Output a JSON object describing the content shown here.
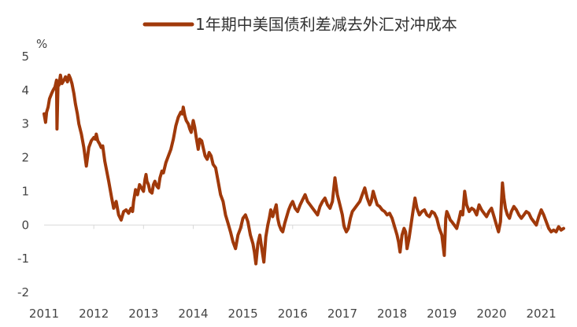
{
  "chart_data": {
    "type": "line",
    "title": "",
    "xlabel": "",
    "ylabel": "%",
    "xlim": [
      2011,
      2021.45
    ],
    "ylim": [
      -2,
      5
    ],
    "y_ticks": [
      "5",
      "4",
      "3",
      "2",
      "1",
      "0",
      "-1",
      "-2"
    ],
    "x_ticks": [
      "2011",
      "2012",
      "2013",
      "2014",
      "2015",
      "2016",
      "2017",
      "2018",
      "2019",
      "2020",
      "2021"
    ],
    "grid": false,
    "legend": "top-center",
    "series": [
      {
        "name": "1年期中美国债利差减去外汇对冲成本",
        "color": "#A0390A",
        "x": [
          2011.0,
          2011.03,
          2011.05,
          2011.08,
          2011.11,
          2011.15,
          2011.18,
          2011.22,
          2011.25,
          2011.26,
          2011.28,
          2011.3,
          2011.33,
          2011.36,
          2011.4,
          2011.43,
          2011.47,
          2011.5,
          2011.53,
          2011.56,
          2011.6,
          2011.63,
          2011.67,
          2011.7,
          2011.75,
          2011.8,
          2011.85,
          2011.9,
          2011.95,
          2012.0,
          2012.03,
          2012.05,
          2012.08,
          2012.12,
          2012.15,
          2012.18,
          2012.22,
          2012.26,
          2012.3,
          2012.33,
          2012.36,
          2012.4,
          2012.45,
          2012.5,
          2012.55,
          2012.6,
          2012.65,
          2012.7,
          2012.75,
          2012.78,
          2012.8,
          2012.84,
          2012.88,
          2012.92,
          2012.96,
          2013.0,
          2013.03,
          2013.05,
          2013.07,
          2013.1,
          2013.13,
          2013.17,
          2013.2,
          2013.23,
          2013.27,
          2013.3,
          2013.33,
          2013.37,
          2013.4,
          2013.45,
          2013.5,
          2013.55,
          2013.6,
          2013.65,
          2013.7,
          2013.75,
          2013.78,
          2013.8,
          2013.83,
          2013.86,
          2013.9,
          2013.93,
          2013.96,
          2014.0,
          2014.03,
          2014.06,
          2014.1,
          2014.13,
          2014.17,
          2014.2,
          2014.24,
          2014.28,
          2014.32,
          2014.36,
          2014.4,
          2014.45,
          2014.5,
          2014.55,
          2014.6,
          2014.65,
          2014.7,
          2014.75,
          2014.8,
          2014.85,
          2014.9,
          2014.95,
          2015.0,
          2015.05,
          2015.1,
          2015.15,
          2015.2,
          2015.23,
          2015.26,
          2015.3,
          2015.34,
          2015.38,
          2015.42,
          2015.46,
          2015.5,
          2015.53,
          2015.56,
          2015.6,
          2015.63,
          2015.67,
          2015.7,
          2015.73,
          2015.77,
          2015.8,
          2015.84,
          2015.88,
          2015.92,
          2015.96,
          2016.0,
          2016.05,
          2016.1,
          2016.15,
          2016.2,
          2016.25,
          2016.3,
          2016.35,
          2016.4,
          2016.45,
          2016.5,
          2016.55,
          2016.6,
          2016.65,
          2016.7,
          2016.75,
          2016.8,
          2016.85,
          2016.9,
          2016.95,
          2017.0,
          2017.03,
          2017.05,
          2017.08,
          2017.12,
          2017.16,
          2017.2,
          2017.25,
          2017.3,
          2017.35,
          2017.4,
          2017.45,
          2017.5,
          2017.55,
          2017.58,
          2017.62,
          2017.66,
          2017.7,
          2017.75,
          2017.8,
          2017.85,
          2017.9,
          2017.95,
          2018.0,
          2018.05,
          2018.1,
          2018.13,
          2018.16,
          2018.2,
          2018.24,
          2018.27,
          2018.3,
          2018.34,
          2018.38,
          2018.42,
          2018.46,
          2018.5,
          2018.55,
          2018.6,
          2018.65,
          2018.7,
          2018.75,
          2018.8,
          2018.85,
          2018.9,
          2018.95,
          2019.0,
          2019.05,
          2019.08,
          2019.1,
          2019.13,
          2019.17,
          2019.2,
          2019.25,
          2019.3,
          2019.35,
          2019.38,
          2019.42,
          2019.46,
          2019.5,
          2019.55,
          2019.6,
          2019.65,
          2019.7,
          2019.75,
          2019.8,
          2019.85,
          2019.9,
          2019.95,
          2020.0,
          2020.03,
          2020.06,
          2020.1,
          2020.14,
          2020.18,
          2020.2,
          2020.22,
          2020.25,
          2020.28,
          2020.32,
          2020.36,
          2020.4,
          2020.45,
          2020.5,
          2020.55,
          2020.6,
          2020.65,
          2020.7,
          2020.75,
          2020.8,
          2020.85,
          2020.9,
          2020.95,
          2021.0,
          2021.05,
          2021.1,
          2021.15,
          2021.2,
          2021.25,
          2021.3,
          2021.35,
          2021.4,
          2021.45
        ],
        "values": [
          3.3,
          3.05,
          3.35,
          3.5,
          3.75,
          3.9,
          4.0,
          4.1,
          4.3,
          2.85,
          4.2,
          4.15,
          4.45,
          4.2,
          4.3,
          4.4,
          4.25,
          4.45,
          4.35,
          4.2,
          3.9,
          3.6,
          3.3,
          3.0,
          2.7,
          2.3,
          1.75,
          2.3,
          2.5,
          2.6,
          2.55,
          2.7,
          2.5,
          2.4,
          2.3,
          2.35,
          1.9,
          1.6,
          1.3,
          1.05,
          0.8,
          0.5,
          0.7,
          0.3,
          0.15,
          0.4,
          0.45,
          0.35,
          0.5,
          0.4,
          0.7,
          1.05,
          0.9,
          1.2,
          1.1,
          1.0,
          1.35,
          1.5,
          1.3,
          1.2,
          1.0,
          0.95,
          1.2,
          1.3,
          1.15,
          1.1,
          1.4,
          1.6,
          1.55,
          1.85,
          2.05,
          2.25,
          2.55,
          2.95,
          3.2,
          3.35,
          3.3,
          3.5,
          3.25,
          3.1,
          3.0,
          2.85,
          2.75,
          3.1,
          2.9,
          2.6,
          2.25,
          2.55,
          2.5,
          2.3,
          2.05,
          1.95,
          2.15,
          2.05,
          1.8,
          1.7,
          1.3,
          0.9,
          0.7,
          0.3,
          0.05,
          -0.2,
          -0.5,
          -0.7,
          -0.3,
          -0.1,
          0.2,
          0.3,
          0.1,
          -0.3,
          -0.55,
          -0.8,
          -1.15,
          -0.55,
          -0.3,
          -0.7,
          -1.1,
          -0.35,
          0.0,
          0.2,
          0.45,
          0.25,
          0.4,
          0.6,
          0.2,
          0.0,
          -0.15,
          -0.2,
          0.05,
          0.25,
          0.45,
          0.6,
          0.7,
          0.5,
          0.4,
          0.6,
          0.75,
          0.9,
          0.7,
          0.6,
          0.5,
          0.4,
          0.3,
          0.55,
          0.7,
          0.8,
          0.6,
          0.5,
          0.7,
          1.4,
          0.9,
          0.6,
          0.3,
          0.0,
          -0.1,
          -0.2,
          -0.1,
          0.2,
          0.4,
          0.5,
          0.6,
          0.7,
          0.9,
          1.1,
          0.8,
          0.6,
          0.7,
          1.0,
          0.8,
          0.6,
          0.55,
          0.45,
          0.4,
          0.3,
          0.35,
          0.2,
          -0.05,
          -0.3,
          -0.5,
          -0.8,
          -0.3,
          -0.1,
          -0.2,
          -0.7,
          -0.4,
          0.0,
          0.4,
          0.8,
          0.5,
          0.3,
          0.4,
          0.45,
          0.3,
          0.25,
          0.4,
          0.35,
          0.2,
          -0.1,
          -0.3,
          -0.9,
          0.2,
          0.4,
          0.3,
          0.15,
          0.1,
          0.0,
          -0.1,
          0.2,
          0.4,
          0.3,
          1.0,
          0.6,
          0.4,
          0.5,
          0.45,
          0.3,
          0.6,
          0.45,
          0.35,
          0.25,
          0.4,
          0.5,
          0.35,
          0.2,
          0.0,
          -0.2,
          0.1,
          0.7,
          1.25,
          0.8,
          0.5,
          0.3,
          0.2,
          0.4,
          0.55,
          0.45,
          0.3,
          0.2,
          0.3,
          0.4,
          0.35,
          0.2,
          0.1,
          0.0,
          0.25,
          0.45,
          0.3,
          0.1,
          -0.1,
          -0.2,
          -0.15,
          -0.2,
          -0.05,
          -0.15,
          -0.1
        ]
      }
    ]
  }
}
